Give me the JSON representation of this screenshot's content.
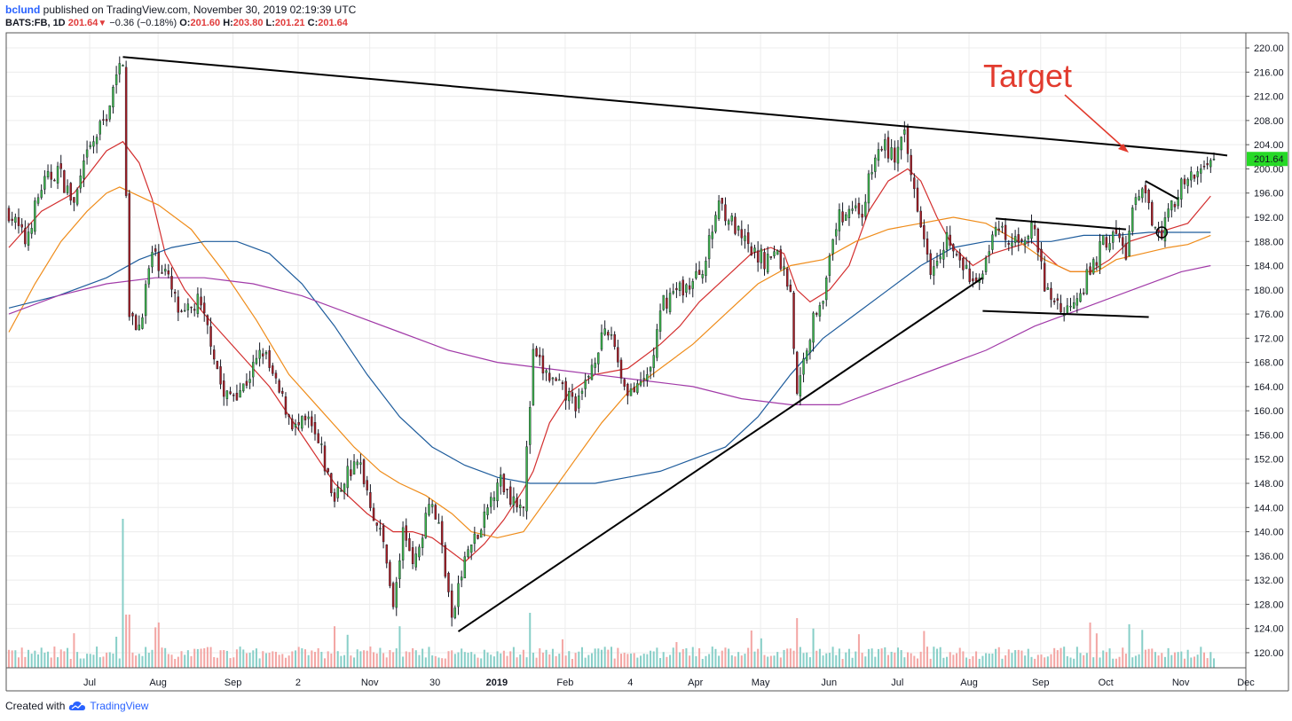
{
  "header": {
    "user": "bclund",
    "published_text": "published on TradingView.com, November 30, 2019 02:19:39 UTC",
    "symbol": "BATS:FB, 1D",
    "last": "201.64",
    "change": "−0.36 (−0.18%)",
    "o_label": "O:",
    "o_value": "201.60",
    "h_label": "H:",
    "h_value": "203.80",
    "l_label": "L:",
    "l_value": "201.21",
    "c_label": "C:",
    "c_value": "201.64"
  },
  "footer": {
    "created_with": "Created with",
    "brand": "TradingView"
  },
  "chart_data": {
    "type": "candlestick",
    "annotation": "Target",
    "last_price_label": "201.64",
    "ylim": [
      117.5,
      222.5
    ],
    "y_ticks": [
      "220.00",
      "216.00",
      "212.00",
      "208.00",
      "204.00",
      "200.00",
      "196.00",
      "192.00",
      "188.00",
      "184.00",
      "180.00",
      "176.00",
      "172.00",
      "168.00",
      "164.00",
      "160.00",
      "156.00",
      "152.00",
      "148.00",
      "144.00",
      "140.00",
      "136.00",
      "132.00",
      "128.00",
      "124.00",
      "120.00"
    ],
    "x_ticks": [
      {
        "label": "Jul",
        "i": 15
      },
      {
        "label": "Aug",
        "i": 36
      },
      {
        "label": "Sep",
        "i": 59
      },
      {
        "label": "2",
        "i": 79
      },
      {
        "label": "Nov",
        "i": 101
      },
      {
        "label": "30",
        "i": 121
      },
      {
        "label": "2019",
        "i": 140
      },
      {
        "label": "Feb",
        "i": 161
      },
      {
        "label": "4",
        "i": 181
      },
      {
        "label": "Apr",
        "i": 201
      },
      {
        "label": "May",
        "i": 221
      },
      {
        "label": "Jun",
        "i": 242
      },
      {
        "label": "Jul",
        "i": 263
      },
      {
        "label": "Aug",
        "i": 285
      },
      {
        "label": "Sep",
        "i": 307
      },
      {
        "label": "Oct",
        "i": 327
      },
      {
        "label": "Nov",
        "i": 350
      },
      {
        "label": "Dec",
        "i": 370
      }
    ],
    "price_path": [
      [
        0,
        193
      ],
      [
        5,
        188
      ],
      [
        10,
        197
      ],
      [
        15,
        200
      ],
      [
        20,
        194
      ],
      [
        24,
        202
      ],
      [
        30,
        209
      ],
      [
        35,
        218.5
      ],
      [
        37,
        175
      ],
      [
        40,
        174
      ],
      [
        44,
        186
      ],
      [
        48,
        183
      ],
      [
        53,
        175
      ],
      [
        58,
        178
      ],
      [
        62,
        172
      ],
      [
        66,
        162
      ],
      [
        72,
        164
      ],
      [
        78,
        170
      ],
      [
        82,
        164
      ],
      [
        88,
        157
      ],
      [
        92,
        158
      ],
      [
        96,
        153
      ],
      [
        100,
        145
      ],
      [
        104,
        150
      ],
      [
        108,
        151
      ],
      [
        112,
        143
      ],
      [
        116,
        136
      ],
      [
        118,
        127
      ],
      [
        121,
        140
      ],
      [
        125,
        135
      ],
      [
        129,
        146
      ],
      [
        132,
        141
      ],
      [
        135,
        130
      ],
      [
        136,
        124.5
      ],
      [
        138,
        131
      ],
      [
        141,
        137
      ],
      [
        145,
        140
      ],
      [
        150,
        149
      ],
      [
        154,
        146
      ],
      [
        158,
        145
      ],
      [
        161,
        169
      ],
      [
        165,
        166
      ],
      [
        170,
        163
      ],
      [
        175,
        161
      ],
      [
        181,
        171
      ],
      [
        185,
        173
      ],
      [
        189,
        164
      ],
      [
        193,
        163
      ],
      [
        197,
        167
      ],
      [
        201,
        178
      ],
      [
        205,
        180
      ],
      [
        210,
        181
      ],
      [
        214,
        185
      ],
      [
        218,
        195
      ],
      [
        221,
        192
      ],
      [
        224,
        189
      ],
      [
        228,
        186
      ],
      [
        232,
        185
      ],
      [
        236,
        186
      ],
      [
        240,
        180
      ],
      [
        242,
        162
      ],
      [
        245,
        171
      ],
      [
        248,
        177
      ],
      [
        251,
        181
      ],
      [
        254,
        191
      ],
      [
        258,
        194
      ],
      [
        262,
        193
      ],
      [
        265,
        200
      ],
      [
        268,
        204
      ],
      [
        272,
        202
      ],
      [
        275,
        205
      ],
      [
        277,
        199
      ],
      [
        280,
        192
      ],
      [
        283,
        184
      ],
      [
        285,
        186
      ],
      [
        288,
        189
      ],
      [
        291,
        185
      ],
      [
        294,
        183
      ],
      [
        297,
        180
      ],
      [
        300,
        186
      ],
      [
        304,
        190
      ],
      [
        307,
        187
      ],
      [
        311,
        189
      ],
      [
        315,
        190
      ],
      [
        318,
        180
      ],
      [
        322,
        178
      ],
      [
        324,
        176
      ],
      [
        327,
        179
      ],
      [
        330,
        181
      ],
      [
        333,
        184
      ],
      [
        336,
        188
      ],
      [
        340,
        189
      ],
      [
        343,
        186
      ],
      [
        345,
        193
      ],
      [
        348,
        196
      ],
      [
        351,
        192
      ],
      [
        354,
        190
      ],
      [
        357,
        194
      ],
      [
        360,
        197
      ],
      [
        363,
        198
      ],
      [
        366,
        200
      ],
      [
        368,
        202
      ],
      [
        369,
        201.64
      ]
    ],
    "ma_red": [
      [
        0,
        187
      ],
      [
        10,
        193
      ],
      [
        20,
        196
      ],
      [
        30,
        203
      ],
      [
        35,
        204.5
      ],
      [
        40,
        201
      ],
      [
        44,
        195
      ],
      [
        48,
        186
      ],
      [
        54,
        180
      ],
      [
        60,
        176
      ],
      [
        70,
        170
      ],
      [
        80,
        164
      ],
      [
        90,
        156
      ],
      [
        100,
        148
      ],
      [
        110,
        143
      ],
      [
        118,
        140
      ],
      [
        124,
        140
      ],
      [
        130,
        139
      ],
      [
        135,
        137
      ],
      [
        140,
        135
      ],
      [
        146,
        138
      ],
      [
        152,
        142
      ],
      [
        158,
        147
      ],
      [
        161,
        150
      ],
      [
        166,
        158
      ],
      [
        172,
        163
      ],
      [
        180,
        166
      ],
      [
        190,
        167
      ],
      [
        200,
        171
      ],
      [
        206,
        174
      ],
      [
        212,
        178
      ],
      [
        220,
        182
      ],
      [
        228,
        186
      ],
      [
        234,
        187
      ],
      [
        238,
        186
      ],
      [
        242,
        180
      ],
      [
        246,
        178
      ],
      [
        252,
        180
      ],
      [
        258,
        184
      ],
      [
        264,
        193
      ],
      [
        270,
        198
      ],
      [
        276,
        200
      ],
      [
        280,
        198
      ],
      [
        285,
        192
      ],
      [
        290,
        187
      ],
      [
        296,
        184
      ],
      [
        302,
        186
      ],
      [
        308,
        187
      ],
      [
        314,
        188
      ],
      [
        318,
        186
      ],
      [
        322,
        184
      ],
      [
        326,
        183
      ],
      [
        332,
        183
      ],
      [
        338,
        185
      ],
      [
        344,
        188
      ],
      [
        350,
        189
      ],
      [
        356,
        190
      ],
      [
        362,
        191
      ],
      [
        369,
        195.5
      ]
    ],
    "ma_orange": [
      [
        0,
        173
      ],
      [
        8,
        181
      ],
      [
        16,
        188
      ],
      [
        24,
        193
      ],
      [
        30,
        196
      ],
      [
        34,
        197
      ],
      [
        38,
        196
      ],
      [
        46,
        194
      ],
      [
        56,
        190
      ],
      [
        66,
        183
      ],
      [
        76,
        175
      ],
      [
        86,
        166
      ],
      [
        96,
        160
      ],
      [
        106,
        154
      ],
      [
        114,
        150
      ],
      [
        120,
        148
      ],
      [
        128,
        146
      ],
      [
        136,
        143
      ],
      [
        142,
        140
      ],
      [
        150,
        139
      ],
      [
        158,
        140
      ],
      [
        166,
        146
      ],
      [
        174,
        152
      ],
      [
        182,
        158
      ],
      [
        190,
        163
      ],
      [
        200,
        167
      ],
      [
        210,
        171
      ],
      [
        220,
        176
      ],
      [
        230,
        181
      ],
      [
        240,
        184
      ],
      [
        250,
        185
      ],
      [
        260,
        188
      ],
      [
        270,
        190
      ],
      [
        280,
        191
      ],
      [
        290,
        192
      ],
      [
        300,
        191
      ],
      [
        310,
        188
      ],
      [
        318,
        185
      ],
      [
        326,
        183
      ],
      [
        334,
        183
      ],
      [
        340,
        185
      ],
      [
        348,
        186
      ],
      [
        356,
        187
      ],
      [
        362,
        187.5
      ],
      [
        369,
        189
      ]
    ],
    "ma_blue": [
      [
        0,
        177
      ],
      [
        15,
        179
      ],
      [
        30,
        182
      ],
      [
        40,
        185
      ],
      [
        50,
        187
      ],
      [
        60,
        188
      ],
      [
        70,
        188
      ],
      [
        80,
        186
      ],
      [
        90,
        181
      ],
      [
        100,
        174
      ],
      [
        110,
        166
      ],
      [
        120,
        159
      ],
      [
        130,
        154
      ],
      [
        140,
        151
      ],
      [
        150,
        149
      ],
      [
        160,
        148
      ],
      [
        170,
        148
      ],
      [
        180,
        148
      ],
      [
        190,
        149
      ],
      [
        200,
        150
      ],
      [
        210,
        152
      ],
      [
        220,
        154
      ],
      [
        230,
        159
      ],
      [
        240,
        166
      ],
      [
        250,
        172
      ],
      [
        260,
        176
      ],
      [
        270,
        180
      ],
      [
        280,
        184
      ],
      [
        290,
        187
      ],
      [
        300,
        188
      ],
      [
        310,
        188
      ],
      [
        320,
        188
      ],
      [
        330,
        189
      ],
      [
        340,
        189
      ],
      [
        350,
        189.5
      ],
      [
        360,
        189.5
      ],
      [
        369,
        189.5
      ]
    ],
    "ma_purple": [
      [
        0,
        176
      ],
      [
        15,
        179
      ],
      [
        30,
        181
      ],
      [
        45,
        182
      ],
      [
        60,
        182
      ],
      [
        75,
        181
      ],
      [
        90,
        179
      ],
      [
        105,
        176
      ],
      [
        120,
        173
      ],
      [
        135,
        170
      ],
      [
        150,
        168
      ],
      [
        165,
        167
      ],
      [
        180,
        166
      ],
      [
        195,
        165
      ],
      [
        210,
        164
      ],
      [
        225,
        162
      ],
      [
        240,
        161
      ],
      [
        255,
        161
      ],
      [
        270,
        164
      ],
      [
        285,
        167
      ],
      [
        300,
        170
      ],
      [
        315,
        174
      ],
      [
        330,
        177
      ],
      [
        345,
        180
      ],
      [
        360,
        183
      ],
      [
        369,
        184
      ]
    ],
    "trendlines": [
      [
        [
          35,
          218.5
        ],
        [
          370,
          202.5
        ]
      ],
      [
        [
          138,
          123.5
        ],
        [
          299,
          182
        ]
      ],
      [
        [
          303,
          191.8
        ],
        [
          343,
          190
        ]
      ],
      [
        [
          299,
          176.5
        ],
        [
          350,
          175.5
        ]
      ],
      [
        [
          349,
          198
        ],
        [
          359,
          195
        ]
      ]
    ],
    "volume_base": 24
  }
}
